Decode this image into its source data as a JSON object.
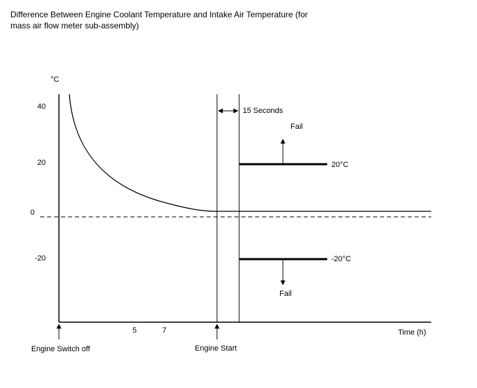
{
  "title": "Difference Between Engine Coolant Temperature and Intake Air Temperature (for mass air flow meter sub-assembly)",
  "y_unit": "°C",
  "y_ticks": [
    "40",
    "20",
    "0",
    "-20"
  ],
  "x_ticks": [
    "5",
    "7"
  ],
  "x_label": "Time (h)",
  "annotations": {
    "interval": "15 Seconds",
    "fail_upper": "Fail",
    "fail_lower": "Fail",
    "threshold_upper": "20°C",
    "threshold_lower": "-20°C"
  },
  "events": {
    "engine_switch_off": "Engine Switch off",
    "engine_start": "Engine Start"
  }
}
